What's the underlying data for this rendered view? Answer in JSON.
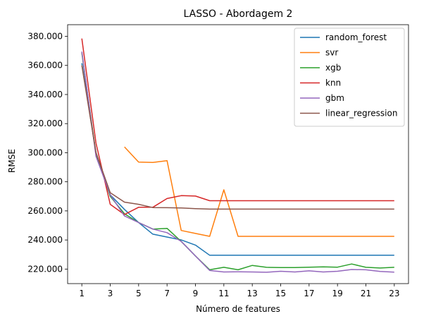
{
  "chart_data": {
    "type": "line",
    "title": "LASSO - Abordagem 2",
    "xlabel": "Número de features",
    "ylabel": "RMSE",
    "xlim": [
      0.0,
      24.0
    ],
    "ylim": [
      210000,
      388000
    ],
    "xticks": [
      1,
      3,
      5,
      7,
      9,
      11,
      13,
      15,
      17,
      19,
      21,
      23
    ],
    "yticks": [
      220000,
      240000,
      260000,
      280000,
      300000,
      320000,
      340000,
      360000,
      380000
    ],
    "ytick_labels": [
      "220.000",
      "240.000",
      "260.000",
      "280.000",
      "300.000",
      "320.000",
      "340.000",
      "360.000",
      "380.000"
    ],
    "xtick_labels": [
      "1",
      "3",
      "5",
      "7",
      "9",
      "11",
      "13",
      "15",
      "17",
      "19",
      "21",
      "23"
    ],
    "grid": false,
    "legend_position": "top-right",
    "series": [
      {
        "name": "random_forest",
        "color": "#1f77b4",
        "x": [
          1,
          2,
          3,
          4,
          5,
          6,
          7,
          8,
          9,
          10,
          11,
          12,
          13,
          14,
          15,
          16,
          17,
          18,
          19,
          20,
          21,
          22,
          23
        ],
        "values": [
          361500,
          300000,
          271000,
          261000,
          252000,
          244000,
          242000,
          240000,
          236500,
          229500,
          229500,
          229500,
          229500,
          229500,
          229500,
          229500,
          229500,
          229500,
          229500,
          229500,
          229500,
          229500,
          229500
        ]
      },
      {
        "name": "svr",
        "color": "#ff7f0e",
        "x": [
          4,
          5,
          6,
          7,
          8,
          9,
          10,
          11,
          12,
          13,
          14,
          15,
          16,
          17,
          18,
          19,
          20,
          21,
          22,
          23
        ],
        "values": [
          304000,
          293500,
          293300,
          294500,
          246500,
          244500,
          242500,
          274500,
          242500,
          242500,
          242500,
          242500,
          242500,
          242500,
          242500,
          242500,
          242500,
          242500,
          242500,
          242500
        ]
      },
      {
        "name": "xgb",
        "color": "#2ca02c",
        "x": [
          1,
          2,
          3,
          4,
          5,
          6,
          7,
          8,
          9,
          10,
          11,
          12,
          13,
          14,
          15,
          16,
          17,
          18,
          19,
          20,
          21,
          22,
          23
        ],
        "values": [
          368500,
          299000,
          270000,
          258000,
          252000,
          247500,
          248000,
          239000,
          229000,
          219500,
          221200,
          219500,
          222500,
          221200,
          221000,
          221000,
          221300,
          221500,
          221300,
          223500,
          221200,
          220700,
          221200
        ]
      },
      {
        "name": "knn",
        "color": "#d62728",
        "x": [
          1,
          2,
          3,
          4,
          5,
          6,
          7,
          8,
          9,
          10,
          11,
          12,
          13,
          14,
          15,
          16,
          17,
          18,
          19,
          20,
          21,
          22,
          23
        ],
        "values": [
          378500,
          306500,
          264500,
          257500,
          262500,
          262500,
          268500,
          270500,
          270200,
          267000,
          267000,
          267000,
          267000,
          267000,
          267000,
          267000,
          267000,
          267000,
          267000,
          267000,
          267000,
          267000,
          267000
        ]
      },
      {
        "name": "gbm",
        "color": "#9467bd",
        "x": [
          1,
          2,
          3,
          4,
          5,
          6,
          7,
          8,
          9,
          10,
          11,
          12,
          13,
          14,
          15,
          16,
          17,
          18,
          19,
          20,
          21,
          22,
          23
        ],
        "values": [
          369500,
          297500,
          271000,
          256500,
          252000,
          247500,
          245000,
          239000,
          229000,
          219000,
          218000,
          218100,
          218000,
          217800,
          218500,
          218000,
          218800,
          218000,
          218500,
          219700,
          219500,
          218400,
          217900
        ]
      },
      {
        "name": "linear_regression",
        "color": "#8c564b",
        "x": [
          1,
          2,
          3,
          4,
          5,
          6,
          7,
          8,
          9,
          10,
          11,
          12,
          13,
          14,
          15,
          16,
          17,
          18,
          19,
          20,
          21,
          22,
          23
        ],
        "values": [
          360000,
          300000,
          272500,
          266000,
          264500,
          262300,
          262200,
          262000,
          261500,
          261200,
          261200,
          261200,
          261200,
          261200,
          261200,
          261200,
          261200,
          261200,
          261200,
          261200,
          261200,
          261200,
          261200
        ]
      }
    ]
  }
}
